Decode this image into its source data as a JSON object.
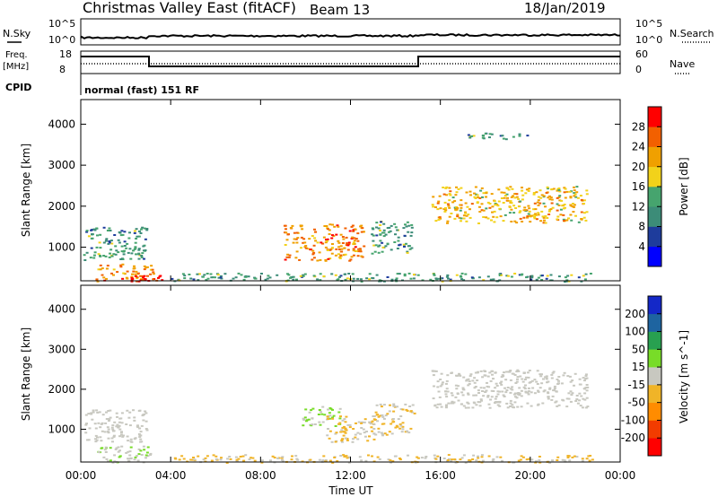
{
  "header": {
    "title": "Christmas Valley East (fitACF)",
    "beam": "Beam 13",
    "date": "18/Jan/2019"
  },
  "status_panels": {
    "nsky": {
      "left_label": "N.Sky",
      "right_label": "N.Search",
      "ticks": [
        "10^5",
        "10^0"
      ]
    },
    "freq": {
      "left_label_1": "Freq.",
      "left_label_2": "[MHz]",
      "right_label": "Nave",
      "left_ticks": [
        "18",
        "8"
      ],
      "right_ticks": [
        "60",
        "0"
      ]
    },
    "cpid": {
      "label": "CPID",
      "text": "normal (fast) 151 RF"
    }
  },
  "colors": {
    "power_scale": [
      "#0000ff",
      "#1e3c9c",
      "#3c8c78",
      "#46a46e",
      "#f2d21a",
      "#f0a000",
      "#f26000",
      "#ff0000"
    ],
    "velocity_scale": [
      "#ff0000",
      "#f23c00",
      "#ff8c00",
      "#f0b428",
      "#c8c8c0",
      "#78dc28",
      "#28a050",
      "#1e64a0",
      "#1428c8"
    ]
  },
  "chart_data": [
    {
      "type": "heatmap",
      "name": "power",
      "ylabel": "Slant Range [km]",
      "x_ticks": [
        "00:00",
        "04:00",
        "08:00",
        "12:00",
        "16:00",
        "20:00",
        "00:00"
      ],
      "y_ticks": [
        1000,
        2000,
        3000,
        4000
      ],
      "xlim": [
        0,
        24
      ],
      "ylim": [
        180,
        4600
      ],
      "colorbar": {
        "label": "Power [dB]",
        "ticks": [
          4,
          8,
          12,
          16,
          20,
          24,
          28
        ],
        "range": [
          0,
          32
        ]
      },
      "regions": [
        {
          "t0": 0.1,
          "t1": 2.9,
          "r0": 700,
          "r1": 1500,
          "value": 12
        },
        {
          "t0": 0.6,
          "t1": 3.2,
          "r0": 180,
          "r1": 600,
          "value": 24
        },
        {
          "t0": 2.2,
          "t1": 3.6,
          "r0": 180,
          "r1": 330,
          "value": 30
        },
        {
          "t0": 9.0,
          "t1": 12.6,
          "r0": 680,
          "r1": 1580,
          "value": 24
        },
        {
          "t0": 12.9,
          "t1": 14.7,
          "r0": 850,
          "r1": 1650,
          "value": 12
        },
        {
          "t0": 15.6,
          "t1": 22.5,
          "r0": 1600,
          "r1": 2500,
          "value": 20
        },
        {
          "t0": 17.1,
          "t1": 19.9,
          "r0": 3650,
          "r1": 3800,
          "value": 12
        },
        {
          "t0": 4.0,
          "t1": 22.8,
          "r0": 180,
          "r1": 380,
          "value": 12
        }
      ]
    },
    {
      "type": "heatmap",
      "name": "velocity",
      "xlabel": "Time UT",
      "ylabel": "Slant Range [km]",
      "x_ticks": [
        "00:00",
        "04:00",
        "08:00",
        "12:00",
        "16:00",
        "20:00",
        "00:00"
      ],
      "y_ticks": [
        1000,
        2000,
        3000,
        4000
      ],
      "xlim": [
        0,
        24
      ],
      "ylim": [
        180,
        4600
      ],
      "colorbar": {
        "label": "Velocity [m s^-1]",
        "ticks": [
          -200,
          -100,
          -50,
          -15,
          15,
          50,
          100,
          200
        ],
        "range": [
          -250,
          250
        ]
      },
      "regions": [
        {
          "t0": 0.1,
          "t1": 2.9,
          "r0": 700,
          "r1": 1500,
          "value": 0
        },
        {
          "t0": 0.6,
          "t1": 3.2,
          "r0": 180,
          "r1": 600,
          "value": 20
        },
        {
          "t0": 9.8,
          "t1": 11.6,
          "r0": 1100,
          "r1": 1580,
          "value": 30
        },
        {
          "t0": 10.9,
          "t1": 13.0,
          "r0": 700,
          "r1": 1350,
          "value": -30
        },
        {
          "t0": 12.9,
          "t1": 14.8,
          "r0": 850,
          "r1": 1650,
          "value": -30
        },
        {
          "t0": 15.6,
          "t1": 22.5,
          "r0": 1550,
          "r1": 2500,
          "value": 0
        },
        {
          "t0": 4.0,
          "t1": 22.8,
          "r0": 180,
          "r1": 380,
          "value": -30
        }
      ]
    }
  ]
}
